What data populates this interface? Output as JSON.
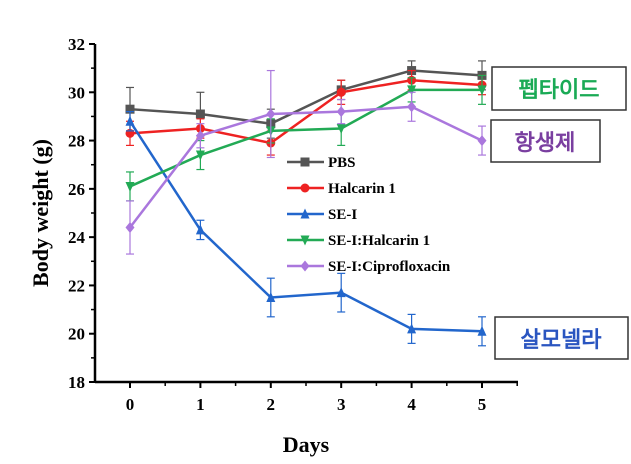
{
  "chart_data": {
    "type": "line",
    "xlabel": "Days",
    "ylabel": "Body weight (g)",
    "x": [
      0,
      1,
      2,
      3,
      4,
      5
    ],
    "xlim": [
      -0.3,
      5.5
    ],
    "ylim": [
      18,
      32
    ],
    "xticks": [
      "0",
      "1",
      "2",
      "3",
      "4",
      "5"
    ],
    "yticks": [
      "18",
      "20",
      "22",
      "24",
      "26",
      "28",
      "30",
      "32"
    ],
    "legend_position": "center",
    "series": [
      {
        "name": "PBS",
        "color": "#555555",
        "marker": "square",
        "values": [
          29.3,
          29.1,
          28.7,
          30.1,
          30.9,
          30.7
        ],
        "errors": [
          0.9,
          0.9,
          0.6,
          0.4,
          0.4,
          0.6
        ]
      },
      {
        "name": "Halcarin 1",
        "color": "#ee2222",
        "marker": "circle",
        "values": [
          28.3,
          28.5,
          27.9,
          30.0,
          30.5,
          30.3
        ],
        "errors": [
          0.5,
          0.4,
          0.5,
          0.5,
          0.4,
          0.4
        ]
      },
      {
        "name": "SE-I",
        "color": "#2266cc",
        "marker": "triangle",
        "values": [
          28.8,
          24.3,
          21.5,
          21.7,
          20.2,
          20.1
        ],
        "errors": [
          0.4,
          0.4,
          0.8,
          0.8,
          0.6,
          0.6
        ]
      },
      {
        "name": "SE-I:Halcarin 1",
        "color": "#22aa55",
        "marker": "triangle-down",
        "values": [
          26.1,
          27.4,
          28.4,
          28.5,
          30.1,
          30.1
        ],
        "errors": [
          0.6,
          0.6,
          0.5,
          0.7,
          0.5,
          0.6
        ]
      },
      {
        "name": "SE-I:Ciprofloxacin",
        "color": "#aa77dd",
        "marker": "diamond",
        "values": [
          24.4,
          28.2,
          29.1,
          29.2,
          29.4,
          28.0
        ],
        "errors": [
          1.1,
          0.5,
          1.8,
          0.5,
          0.6,
          0.6
        ]
      }
    ],
    "annotations": [
      {
        "text": "펩타이드",
        "color": "#1aaa55"
      },
      {
        "text": "항생제",
        "color": "#7a3fa0"
      },
      {
        "text": "살모넬라",
        "color": "#2a55c0"
      }
    ]
  }
}
